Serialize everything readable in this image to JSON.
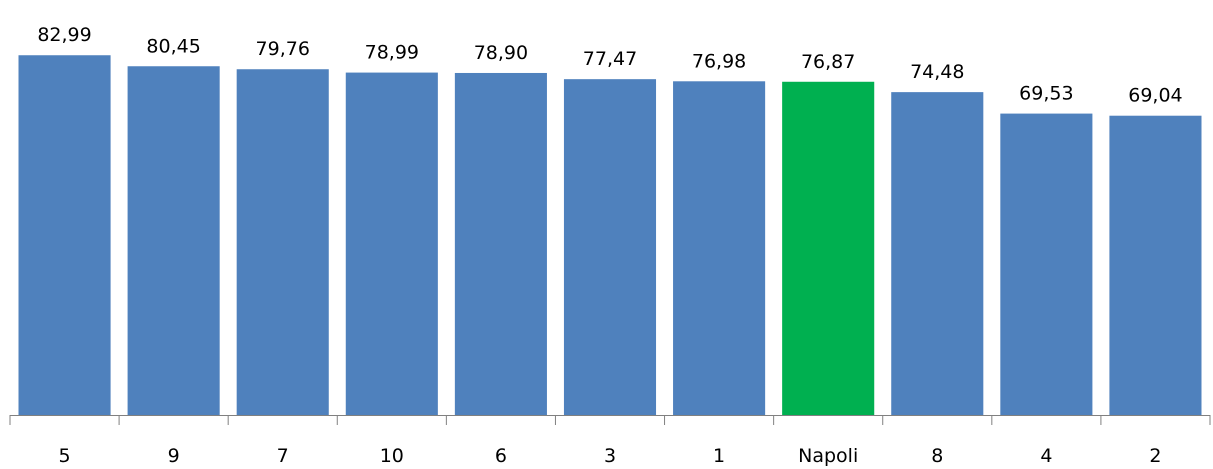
{
  "chart_data": {
    "type": "bar",
    "categories": [
      "5",
      "9",
      "7",
      "10",
      "6",
      "3",
      "1",
      "Napoli",
      "8",
      "4",
      "2"
    ],
    "values": [
      82.99,
      80.45,
      79.76,
      78.99,
      78.9,
      77.47,
      76.98,
      76.87,
      74.48,
      69.53,
      69.04
    ],
    "data_labels": [
      "82,99",
      "80,45",
      "79,76",
      "78,99",
      "78,90",
      "77,47",
      "76,98",
      "76,87",
      "74,48",
      "69,53",
      "69,04"
    ],
    "ylim": [
      0,
      100
    ],
    "grid": false,
    "legend": "none",
    "colors": {
      "default": "#4F81BD",
      "highlight": "#00B050",
      "axis": "#808080"
    },
    "highlight_category": "Napoli"
  }
}
